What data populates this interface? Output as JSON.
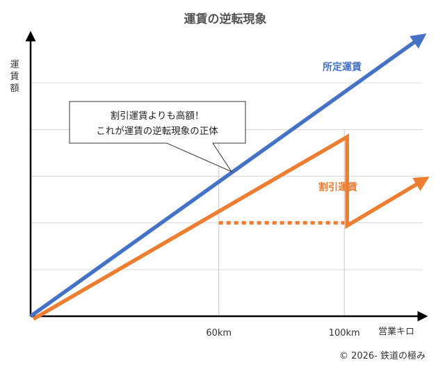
{
  "chart_data": {
    "type": "line",
    "title": "運賃の逆転現象",
    "ylabel": "運賃額",
    "xlabel": "営業キロ",
    "x_ticks": [
      "60km",
      "100km"
    ],
    "x_tick_values": [
      60,
      100
    ],
    "xlim": [
      0,
      125
    ],
    "grid": true,
    "series": [
      {
        "name": "所定運賃",
        "color": "#4472c4",
        "style": "solid-arrow",
        "points": [
          [
            0,
            0
          ],
          [
            125,
            6
          ]
        ]
      },
      {
        "name": "割引運賃",
        "color": "#ed7d31",
        "style": "solid-arrow",
        "points": [
          [
            0,
            0
          ],
          [
            100,
            3.9
          ],
          [
            100,
            2.0
          ],
          [
            125,
            3.0
          ]
        ]
      },
      {
        "name": "",
        "color": "#ed7d31",
        "style": "dotted",
        "points": [
          [
            60,
            2.0
          ],
          [
            100,
            2.0
          ]
        ]
      }
    ],
    "ylim": [
      0,
      6
    ],
    "gridline_values": [
      1,
      2,
      3,
      4,
      5
    ],
    "annotation": {
      "lines": [
        "割引運賃よりも高額！",
        "これが運賃の逆転現象の正体"
      ],
      "points_to": [
        85,
        3.3
      ]
    }
  },
  "copyright": "© 2026- 鉄道の極み"
}
